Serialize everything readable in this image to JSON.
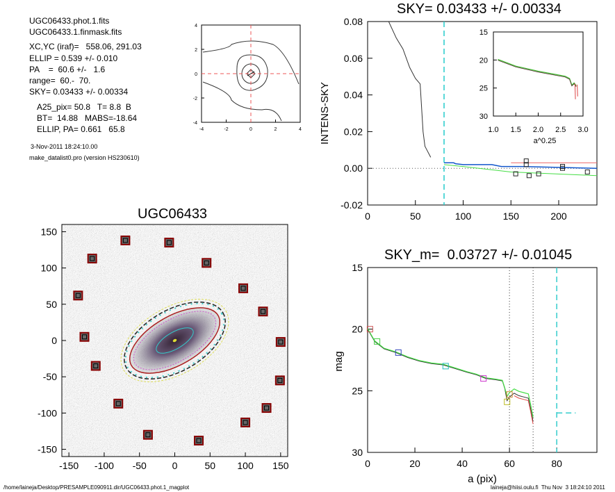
{
  "info": {
    "lines": [
      "UGC06433.phot.1.fits",
      "UGC06433.1.finmask.fits",
      "XC,YC (iraf)=   558.06, 291.03",
      "ELLIP = 0.539 +/- 0.010",
      "PA    =  60.6 +/-   1.6",
      "range=  60.-  70.",
      "SKY= 0.03433 +/- 0.00334"
    ],
    "lines2": [
      "A25_pix= 50.8   T= 8.8  B",
      "BT=  14.88   MABS=-18.64",
      "ELLIP, PA= 0.661   65.8"
    ],
    "date": "3-Nov-2011 18:24:10.00",
    "program": "make_datalist0.pro (version HS230610)"
  },
  "footer": {
    "left": "/home/laineja/Desktop/PRESAMPLE090911.dir/UGC06433.phot.1_magplot",
    "right": "laineja@hiisi.oulu.fi  Thu Nov  3 18:24:10 2011"
  },
  "chart_data": [
    {
      "id": "center",
      "type": "contour",
      "title": "",
      "xlim": [
        -4,
        4
      ],
      "ylim": [
        -4,
        4
      ],
      "xticks": [
        "-4",
        "-2",
        "0",
        "2",
        "4"
      ],
      "yticks": [
        "4",
        "2",
        "0",
        "-2",
        "-4"
      ]
    },
    {
      "id": "sky",
      "type": "line",
      "title": "SKY= 0.03433 +/- 0.00334",
      "ylabel": "INTENS-SKY",
      "xlim": [
        0,
        240
      ],
      "ylim": [
        -0.02,
        0.08
      ],
      "xticks": [
        "0",
        "50",
        "100",
        "150",
        "200"
      ],
      "yticks": [
        "0.08",
        "0.06",
        "0.04",
        "0.02",
        "0.00",
        "-0.02"
      ],
      "colors": {
        "profile": "#333333",
        "sky": "#22cccc",
        "green": "#44dd44",
        "red": "#ee6666",
        "blue": "#1155cc"
      },
      "profile": [
        [
          14,
          0.085
        ],
        [
          22,
          0.08
        ],
        [
          30,
          0.071
        ],
        [
          37,
          0.065
        ],
        [
          44,
          0.055
        ],
        [
          50,
          0.049
        ],
        [
          55,
          0.046
        ],
        [
          58,
          0.02
        ],
        [
          60,
          0.012
        ],
        [
          62,
          0.01
        ],
        [
          66,
          0.006
        ]
      ],
      "sky_line": [
        [
          80,
          0.003
        ],
        [
          90,
          0.003
        ],
        [
          92,
          0.0025
        ],
        [
          100,
          0.002
        ],
        [
          130,
          0.002
        ],
        [
          140,
          0.001
        ],
        [
          160,
          0.001
        ],
        [
          240,
          0.0
        ]
      ],
      "green_line": [
        [
          80,
          0.002
        ],
        [
          100,
          0.001
        ],
        [
          150,
          -0.002
        ],
        [
          240,
          -0.004
        ]
      ],
      "red_line": [
        [
          150,
          0.003
        ],
        [
          240,
          0.003
        ]
      ],
      "squares": [
        [
          155,
          -0.003
        ],
        [
          166,
          0.004
        ],
        [
          166,
          0.002
        ],
        [
          169,
          -0.004
        ],
        [
          179,
          -0.003
        ],
        [
          204,
          0.001
        ],
        [
          204,
          0.0
        ],
        [
          230,
          -0.002
        ]
      ],
      "vline_x": 80,
      "inset": {
        "xlabel": "a^0.25",
        "xlim": [
          1.0,
          3.0
        ],
        "ylim": [
          15,
          30
        ],
        "xticks": [
          "1.0",
          "1.5",
          "2.0",
          "2.5",
          "3.0"
        ],
        "yticks": [
          "15",
          "20",
          "25",
          "30"
        ],
        "profile": [
          [
            1.1,
            19.9
          ],
          [
            1.5,
            21.1
          ],
          [
            2.0,
            22.0
          ],
          [
            2.4,
            22.6
          ],
          [
            2.6,
            22.9
          ],
          [
            2.7,
            23.3
          ],
          [
            2.75,
            24.5
          ],
          [
            2.8,
            24.1
          ],
          [
            2.85,
            24.6
          ]
        ]
      }
    },
    {
      "id": "image",
      "type": "image",
      "title": "UGC06433",
      "xlim": [
        -160,
        160
      ],
      "ylim": [
        -160,
        160
      ],
      "xticks": [
        "-150",
        "-100",
        "-50",
        "0",
        "50",
        "100",
        "150"
      ],
      "yticks": [
        "150",
        "100",
        "50",
        "0",
        "-50",
        "-100",
        "-150"
      ],
      "sky_boxes": [
        [
          -137,
          62
        ],
        [
          -128,
          5
        ],
        [
          -112,
          -35
        ],
        [
          -117,
          113
        ],
        [
          -80,
          -87
        ],
        [
          -38,
          -130
        ],
        [
          -8,
          135
        ],
        [
          34,
          -138
        ],
        [
          45,
          107
        ],
        [
          -70,
          138
        ],
        [
          97,
          72
        ],
        [
          100,
          -113
        ],
        [
          125,
          40
        ],
        [
          130,
          -93
        ],
        [
          150,
          -2
        ],
        [
          149,
          -55
        ]
      ]
    },
    {
      "id": "mag",
      "type": "line",
      "title": "SKY_m=  0.03727 +/- 0.01045",
      "xlabel": "a (pix)",
      "ylabel": "mag",
      "xlim": [
        0,
        97
      ],
      "ylim": [
        15,
        30
      ],
      "xticks": [
        "0",
        "20",
        "40",
        "60",
        "80"
      ],
      "yticks": [
        "15",
        "20",
        "25",
        "30"
      ],
      "profile": [
        [
          0,
          20.0
        ],
        [
          3,
          21.0
        ],
        [
          7,
          21.6
        ],
        [
          12,
          21.9
        ],
        [
          17,
          22.3
        ],
        [
          22,
          22.6
        ],
        [
          27,
          22.8
        ],
        [
          32,
          22.9
        ],
        [
          37,
          23.2
        ],
        [
          42,
          23.5
        ],
        [
          46,
          23.7
        ],
        [
          50,
          24.0
        ],
        [
          54,
          24.1
        ],
        [
          57,
          24.2
        ],
        [
          58,
          24.8
        ],
        [
          59,
          25.8
        ],
        [
          60,
          25.5
        ],
        [
          62,
          25.2
        ],
        [
          64,
          25.4
        ],
        [
          66,
          25.5
        ],
        [
          68,
          25.6
        ],
        [
          69,
          26.5
        ],
        [
          70,
          27.5
        ]
      ],
      "markers": [
        [
          1,
          20.0,
          "#cc5555"
        ],
        [
          4,
          21.0,
          "#44cc44"
        ],
        [
          13,
          21.9,
          "#3344bb"
        ],
        [
          33,
          23.0,
          "#22bbbb"
        ],
        [
          49,
          24.0,
          "#cc33cc"
        ],
        [
          59,
          25.9,
          "#bbbb22"
        ],
        [
          60,
          25.3,
          "#cc8833"
        ]
      ],
      "vlines": [
        60,
        70
      ],
      "sky_x": 80,
      "sky_mag": 26.8
    }
  ]
}
